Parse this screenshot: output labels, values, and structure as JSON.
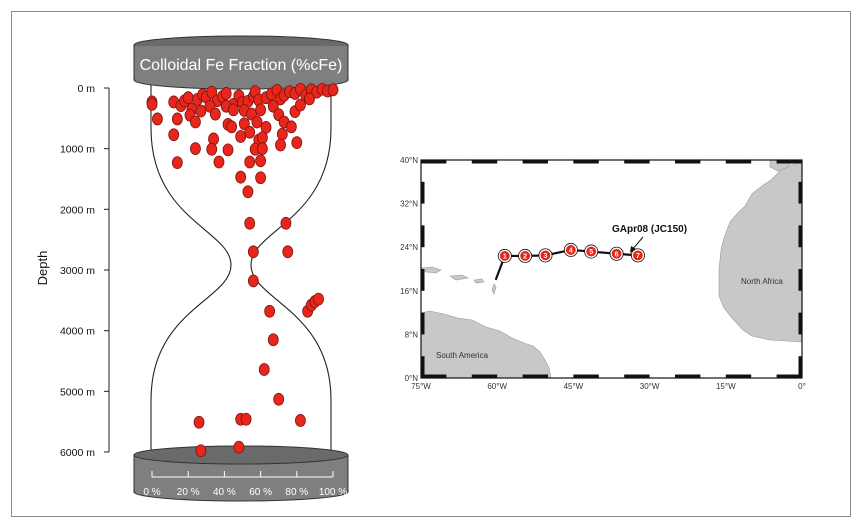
{
  "colors": {
    "cap_fill": "#7f7f7f",
    "cap_top": "#6a6a6a",
    "point_fill": "#e8261c",
    "point_stroke": "#7a1410",
    "land": "#c8c8c8",
    "track": "#111111"
  },
  "chart_data": [
    {
      "type": "scatter",
      "title": "Colloidal Fe Fraction (%cFe)",
      "ylabel": "Depth",
      "xlabel": "",
      "xlim": [
        0,
        100
      ],
      "ylim": [
        0,
        6000
      ],
      "x_ticks": [
        "0 %",
        "20 %",
        "40 %",
        "60 %",
        "80 %",
        "100 %"
      ],
      "x_tick_values": [
        0,
        20,
        40,
        60,
        80,
        100
      ],
      "y_ticks": [
        "0 m",
        "1000 m",
        "2000 m",
        "3000 m",
        "4000 m",
        "5000 m",
        "6000 m"
      ],
      "y_tick_values": [
        0,
        1000,
        2000,
        3000,
        4000,
        5000,
        6000
      ],
      "grid": false,
      "points": [
        {
          "x": 0,
          "y": 230
        },
        {
          "x": 0,
          "y": 270
        },
        {
          "x": 3,
          "y": 510
        },
        {
          "x": 12,
          "y": 230
        },
        {
          "x": 16,
          "y": 290
        },
        {
          "x": 18,
          "y": 210
        },
        {
          "x": 20,
          "y": 160
        },
        {
          "x": 22,
          "y": 350
        },
        {
          "x": 25,
          "y": 190
        },
        {
          "x": 28,
          "y": 110
        },
        {
          "x": 30,
          "y": 150
        },
        {
          "x": 33,
          "y": 70
        },
        {
          "x": 36,
          "y": 210
        },
        {
          "x": 39,
          "y": 140
        },
        {
          "x": 41,
          "y": 90
        },
        {
          "x": 45,
          "y": 270
        },
        {
          "x": 48,
          "y": 130
        },
        {
          "x": 50,
          "y": 240
        },
        {
          "x": 53,
          "y": 220
        },
        {
          "x": 56,
          "y": 140
        },
        {
          "x": 57,
          "y": 60
        },
        {
          "x": 59,
          "y": 200
        },
        {
          "x": 63,
          "y": 160
        },
        {
          "x": 66,
          "y": 100
        },
        {
          "x": 69,
          "y": 40
        },
        {
          "x": 71,
          "y": 180
        },
        {
          "x": 73,
          "y": 120
        },
        {
          "x": 76,
          "y": 60
        },
        {
          "x": 79,
          "y": 90
        },
        {
          "x": 82,
          "y": 20
        },
        {
          "x": 85,
          "y": 120
        },
        {
          "x": 88,
          "y": 30
        },
        {
          "x": 91,
          "y": 70
        },
        {
          "x": 94,
          "y": 20
        },
        {
          "x": 97,
          "y": 50
        },
        {
          "x": 100,
          "y": 30
        },
        {
          "x": 14,
          "y": 510
        },
        {
          "x": 21,
          "y": 450
        },
        {
          "x": 27,
          "y": 380
        },
        {
          "x": 32,
          "y": 300
        },
        {
          "x": 35,
          "y": 430
        },
        {
          "x": 41,
          "y": 300
        },
        {
          "x": 42,
          "y": 600
        },
        {
          "x": 45,
          "y": 360
        },
        {
          "x": 51,
          "y": 370
        },
        {
          "x": 55,
          "y": 430
        },
        {
          "x": 60,
          "y": 360
        },
        {
          "x": 67,
          "y": 300
        },
        {
          "x": 70,
          "y": 440
        },
        {
          "x": 79,
          "y": 390
        },
        {
          "x": 82,
          "y": 280
        },
        {
          "x": 87,
          "y": 180
        },
        {
          "x": 24,
          "y": 560
        },
        {
          "x": 44,
          "y": 640
        },
        {
          "x": 51,
          "y": 590
        },
        {
          "x": 58,
          "y": 560
        },
        {
          "x": 63,
          "y": 650
        },
        {
          "x": 73,
          "y": 560
        },
        {
          "x": 77,
          "y": 640
        },
        {
          "x": 12,
          "y": 770
        },
        {
          "x": 34,
          "y": 840
        },
        {
          "x": 49,
          "y": 800
        },
        {
          "x": 54,
          "y": 730
        },
        {
          "x": 59,
          "y": 860
        },
        {
          "x": 61,
          "y": 820
        },
        {
          "x": 72,
          "y": 760
        },
        {
          "x": 80,
          "y": 900
        },
        {
          "x": 24,
          "y": 1000
        },
        {
          "x": 42,
          "y": 1020
        },
        {
          "x": 57,
          "y": 1010
        },
        {
          "x": 61,
          "y": 1000
        },
        {
          "x": 71,
          "y": 940
        },
        {
          "x": 14,
          "y": 1230
        },
        {
          "x": 33,
          "y": 1010
        },
        {
          "x": 37,
          "y": 1220
        },
        {
          "x": 54,
          "y": 1220
        },
        {
          "x": 60,
          "y": 1200
        },
        {
          "x": 49,
          "y": 1470
        },
        {
          "x": 60,
          "y": 1480
        },
        {
          "x": 53,
          "y": 1710
        },
        {
          "x": 54,
          "y": 2230
        },
        {
          "x": 74,
          "y": 2230
        },
        {
          "x": 56,
          "y": 2700
        },
        {
          "x": 75,
          "y": 2700
        },
        {
          "x": 56,
          "y": 3180
        },
        {
          "x": 86,
          "y": 3680
        },
        {
          "x": 88,
          "y": 3580
        },
        {
          "x": 90,
          "y": 3520
        },
        {
          "x": 92,
          "y": 3480
        },
        {
          "x": 65,
          "y": 3680
        },
        {
          "x": 67,
          "y": 4150
        },
        {
          "x": 62,
          "y": 4640
        },
        {
          "x": 70,
          "y": 5130
        },
        {
          "x": 26,
          "y": 5510
        },
        {
          "x": 49,
          "y": 5460
        },
        {
          "x": 52,
          "y": 5460
        },
        {
          "x": 82,
          "y": 5480
        },
        {
          "x": 27,
          "y": 5980
        },
        {
          "x": 48,
          "y": 5920
        }
      ]
    },
    {
      "type": "map",
      "xlim": [
        -75,
        0
      ],
      "ylim": [
        0,
        40
      ],
      "x_ticks": [
        "75°W",
        "60°W",
        "45°W",
        "30°W",
        "15°W",
        "0°"
      ],
      "x_tick_values": [
        -75,
        -60,
        -45,
        -30,
        -15,
        0
      ],
      "y_ticks": [
        "0°N",
        "8°N",
        "16°N",
        "24°N",
        "32°N",
        "40°N"
      ],
      "y_tick_values": [
        0,
        8,
        16,
        24,
        32,
        40
      ],
      "track_label": "GApr08 (JC150)",
      "land_labels": [
        "South America",
        "North Africa"
      ],
      "stations": [
        {
          "label": "1",
          "lon": -58.5,
          "lat": 22.4
        },
        {
          "label": "2",
          "lon": -54.5,
          "lat": 22.4
        },
        {
          "label": "3",
          "lon": -50.5,
          "lat": 22.5
        },
        {
          "label": "4",
          "lon": -45.5,
          "lat": 23.5
        },
        {
          "label": "5",
          "lon": -41.5,
          "lat": 23.2
        },
        {
          "label": "6",
          "lon": -36.5,
          "lat": 22.8
        },
        {
          "label": "7",
          "lon": -32.3,
          "lat": 22.5
        }
      ],
      "track_start": {
        "lon": -60.3,
        "lat": 18.0
      }
    }
  ]
}
